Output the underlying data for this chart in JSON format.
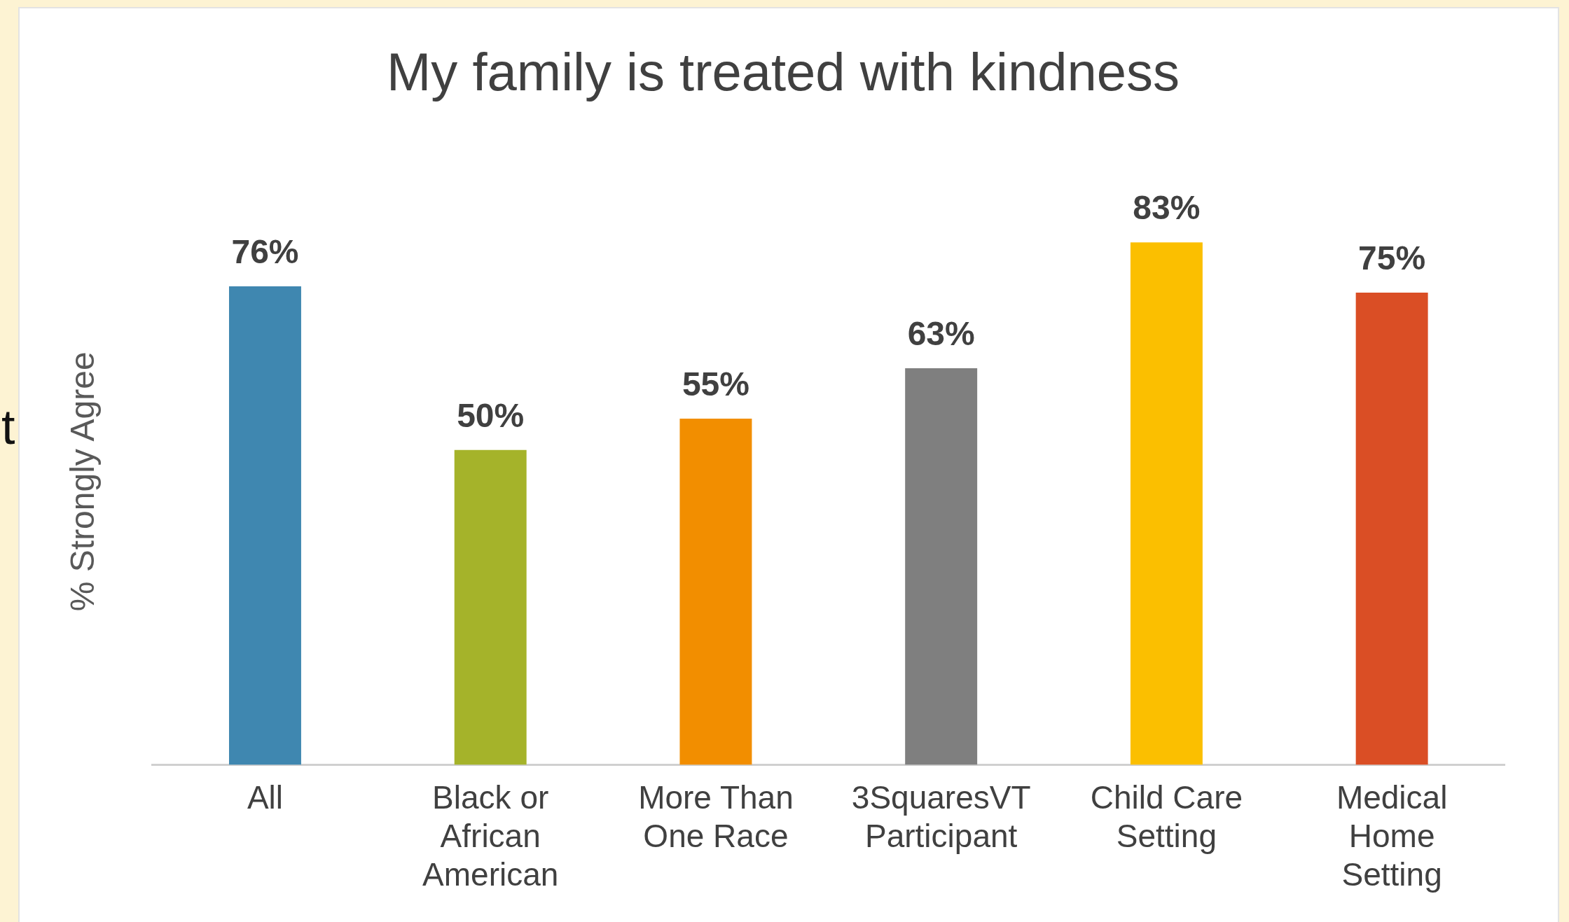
{
  "chart_data": {
    "type": "bar",
    "title": "My family is treated with kindness",
    "ylabel": "% Strongly Agree",
    "categories": [
      "All",
      "Black or African American",
      "More Than One Race",
      "3SquaresVT Participant",
      "Child Care Setting",
      "Medical Home Setting"
    ],
    "values": [
      76,
      50,
      55,
      63,
      83,
      75
    ],
    "colors": [
      "#3f87b0",
      "#a5b32a",
      "#f28e00",
      "#7f7f7f",
      "#fbbf00",
      "#da4e25"
    ],
    "data_labels": true,
    "value_labels": [
      "76%",
      "50%",
      "55%",
      "63%",
      "83%",
      "75%"
    ],
    "grid": false,
    "legend": false,
    "annotations": [
      "t"
    ]
  }
}
